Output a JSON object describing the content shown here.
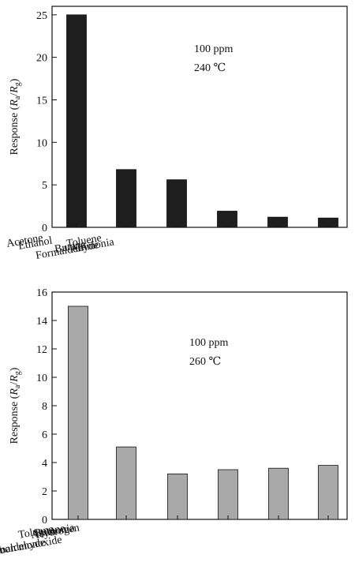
{
  "chart_data": [
    {
      "type": "bar",
      "categories": [
        "Acetone",
        "Ethanol",
        "Formaldehyde",
        "Toluene",
        "Ammonia",
        "Butane"
      ],
      "values": [
        25.0,
        6.8,
        5.6,
        1.9,
        1.2,
        1.1
      ],
      "ylim": [
        0,
        26
      ],
      "yticks": [
        0,
        5,
        10,
        15,
        20,
        25
      ],
      "ylabel": "Response (Ra/Rg)",
      "ylabel_parts": {
        "prefix": "Response (",
        "r1": "R",
        "s1": "a",
        "slash": "/",
        "r2": "R",
        "s2": "g",
        "suffix": ")"
      },
      "annotations": [
        "100 ppm",
        "240 ℃"
      ],
      "bar_color": "#1e1e1e",
      "grid": false,
      "legend": "none"
    },
    {
      "type": "bar",
      "categories": [
        "Formaldehyde",
        "Toluene",
        "Ammonia",
        "Hydrogen",
        "Carbon monoxide",
        "Butane"
      ],
      "values": [
        15.0,
        5.1,
        3.2,
        3.5,
        3.6,
        3.8
      ],
      "ylim": [
        0,
        16
      ],
      "yticks": [
        0,
        2,
        4,
        6,
        8,
        10,
        12,
        14,
        16
      ],
      "ylabel": "Response (Ra/Rg)",
      "ylabel_parts": {
        "prefix": "Response (",
        "r1": "R",
        "s1": "a",
        "slash": "/",
        "r2": "R",
        "s2": "g",
        "suffix": ")"
      },
      "annotations": [
        "100 ppm",
        "260 ℃"
      ],
      "bar_color": "#a9a9a9",
      "grid": false,
      "legend": "none"
    }
  ]
}
